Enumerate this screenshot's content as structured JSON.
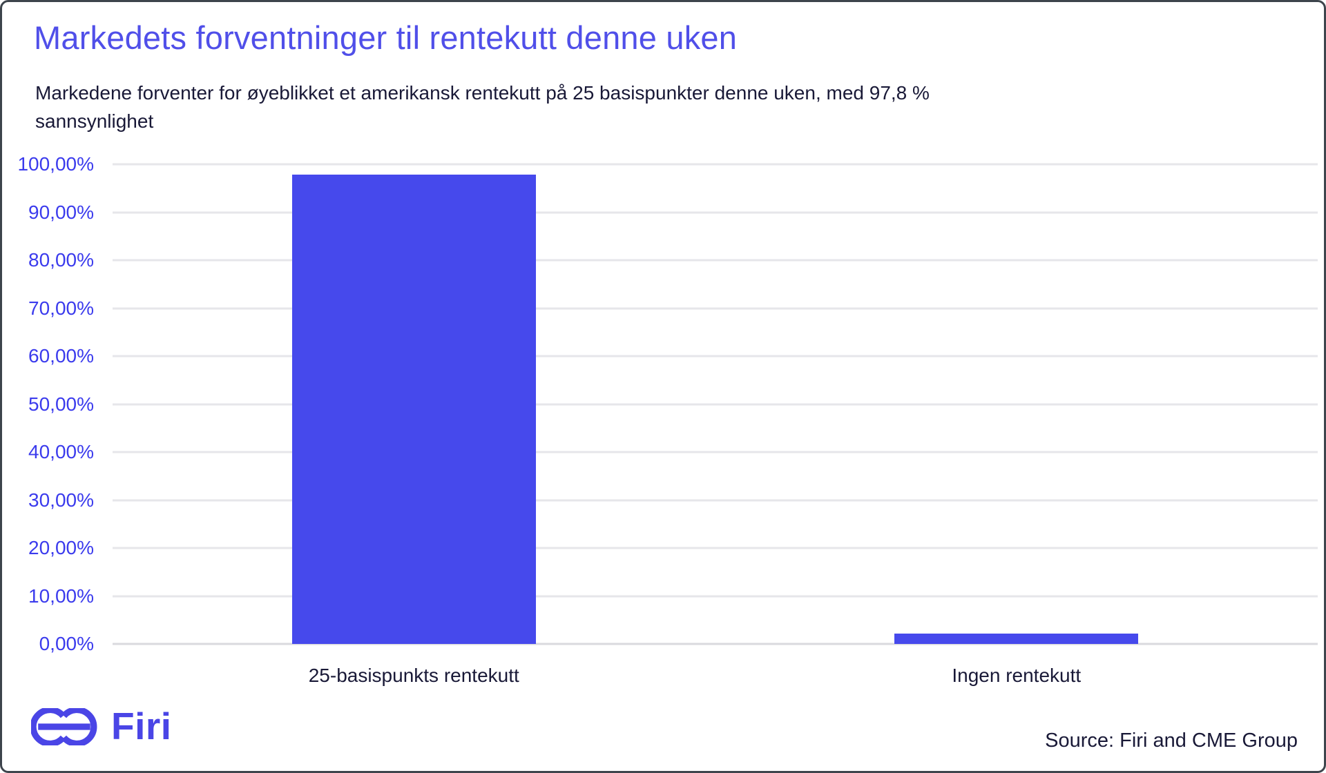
{
  "header": {
    "title": "Markedets forventninger til rentekutt denne uken",
    "subtitle": "Markedene forventer for øyeblikket et amerikansk rentekutt på 25 basispunkter denne uken, med 97,8 % sannsynlighet"
  },
  "chart_data": {
    "type": "bar",
    "categories": [
      "25-basispunkts rentekutt",
      "Ingen rentekutt"
    ],
    "values": [
      97.8,
      2.2
    ],
    "title": "Markedets forventninger til rentekutt denne uken",
    "xlabel": "",
    "ylabel": "",
    "ylim": [
      0,
      100
    ],
    "ytick_step": 10,
    "ytick_labels": [
      "0,00%",
      "10,00%",
      "20,00%",
      "30,00%",
      "40,00%",
      "50,00%",
      "60,00%",
      "70,00%",
      "80,00%",
      "90,00%",
      "100,00%"
    ],
    "grid": "horizontal",
    "legend": "none",
    "bar_color": "#4649ec"
  },
  "footer": {
    "logo_text": "Firi",
    "source": "Source: Firi and CME Group"
  },
  "colors": {
    "title_blue": "#504fe9",
    "axis_label_blue": "#3b3bed",
    "bar_blue": "#4649ec",
    "text_navy": "#191937",
    "gridline": "#e6e6ea",
    "logo_blue": "#4a45e6",
    "frame_border": "#3d444c"
  }
}
